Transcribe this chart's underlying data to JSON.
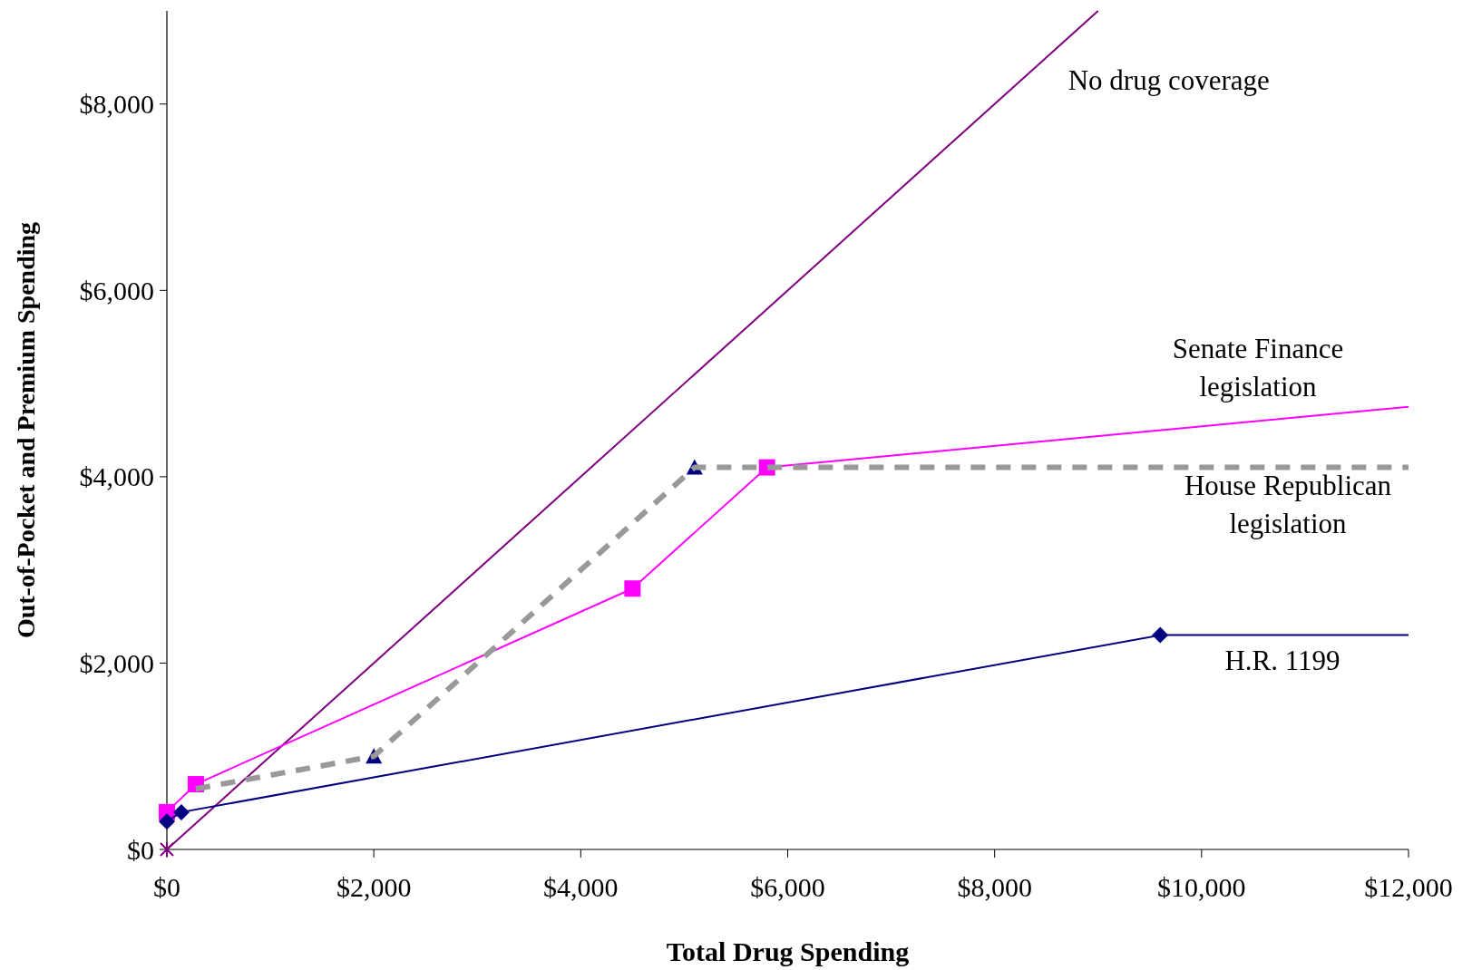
{
  "chart_data": {
    "type": "line",
    "xlabel": "Total Drug Spending",
    "ylabel": "Out-of-Pocket and Premium Spending",
    "xlim": [
      0,
      12000
    ],
    "ylim": [
      0,
      9000
    ],
    "xticks": [
      {
        "value": 0,
        "label": "$0"
      },
      {
        "value": 2000,
        "label": "$2,000"
      },
      {
        "value": 4000,
        "label": "$4,000"
      },
      {
        "value": 6000,
        "label": "$6,000"
      },
      {
        "value": 8000,
        "label": "$8,000"
      },
      {
        "value": 10000,
        "label": "$10,000"
      },
      {
        "value": 12000,
        "label": "$12,000"
      }
    ],
    "yticks": [
      {
        "value": 0,
        "label": "$0"
      },
      {
        "value": 2000,
        "label": "$2,000"
      },
      {
        "value": 4000,
        "label": "$4,000"
      },
      {
        "value": 6000,
        "label": "$6,000"
      },
      {
        "value": 8000,
        "label": "$8,000"
      }
    ],
    "grid": false,
    "legend": false,
    "series": [
      {
        "name": "No drug coverage",
        "color": "#800080",
        "x": [
          0,
          9000
        ],
        "values": [
          0,
          9000
        ],
        "line_style": "solid"
      },
      {
        "type": "scatter",
        "color": "#800080",
        "x": [
          0
        ],
        "values": [
          0
        ],
        "marker": "cross"
      },
      {
        "type": "scatter",
        "color": "#000080",
        "x": [
          2000,
          5100
        ],
        "values": [
          1000,
          4100
        ],
        "marker": "triangle"
      },
      {
        "name": "Senate Finance legislation",
        "color": "#ff00ff",
        "x": [
          0,
          280,
          4500,
          5800,
          12000
        ],
        "values": [
          400,
          700,
          2800,
          4100,
          4750
        ],
        "line_style": "solid"
      },
      {
        "type": "scatter",
        "color": "#ff00ff",
        "x": [
          0,
          280,
          4500,
          5800
        ],
        "values": [
          400,
          700,
          2800,
          4100
        ],
        "marker": "square"
      },
      {
        "name": "H.R. 1199",
        "color": "#000080",
        "x": [
          0,
          140,
          9600,
          12000
        ],
        "values": [
          300,
          400,
          2300,
          2300
        ],
        "line_style": "solid"
      },
      {
        "type": "scatter",
        "color": "#000080",
        "x": [
          0,
          140,
          9600
        ],
        "values": [
          300,
          400,
          2300
        ],
        "marker": "diamond"
      },
      {
        "name": "House Republican legislation",
        "color": "#999999",
        "x": [
          280,
          2000,
          5100,
          12000
        ],
        "values": [
          650,
          1000,
          4100,
          4100
        ],
        "line_style": "dashed"
      }
    ]
  }
}
